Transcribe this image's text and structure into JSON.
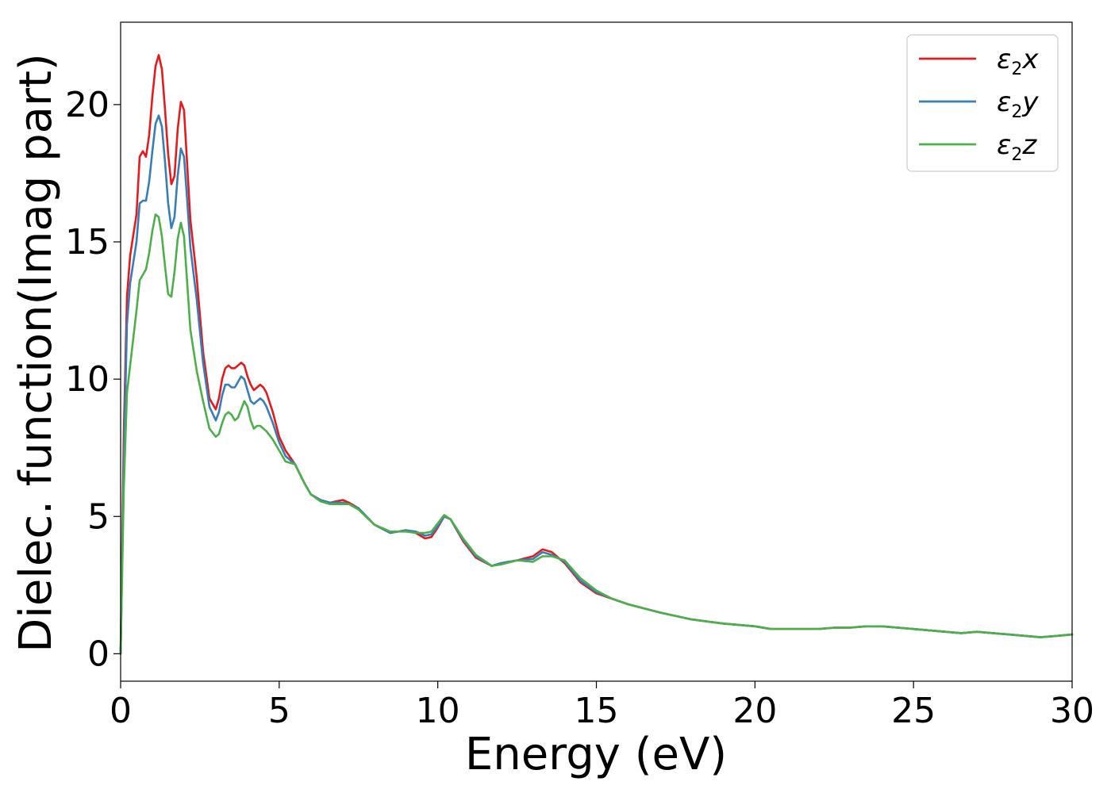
{
  "chart_data": {
    "type": "line",
    "xlabel": "Energy (eV)",
    "ylabel": "Dielec. function(Imag part)",
    "xlim": [
      0,
      30
    ],
    "ylim": [
      -1,
      23
    ],
    "xticks": [
      "0",
      "5",
      "10",
      "15",
      "20",
      "25",
      "30"
    ],
    "yticks": [
      "0",
      "5",
      "10",
      "15",
      "20"
    ],
    "grid": false,
    "legend_position": "top-right",
    "series": [
      {
        "name": "ε2x",
        "legend_base": "ε",
        "legend_sub": "2",
        "legend_suffix": "x",
        "color": "#e41a1c",
        "x": [
          0,
          0.1,
          0.2,
          0.3,
          0.5,
          0.6,
          0.7,
          0.8,
          0.9,
          1.0,
          1.1,
          1.2,
          1.3,
          1.4,
          1.5,
          1.6,
          1.7,
          1.8,
          1.9,
          2.0,
          2.1,
          2.2,
          2.4,
          2.6,
          2.8,
          3.0,
          3.1,
          3.2,
          3.3,
          3.4,
          3.5,
          3.6,
          3.7,
          3.8,
          3.9,
          4.0,
          4.1,
          4.2,
          4.3,
          4.4,
          4.5,
          4.6,
          4.8,
          5.0,
          5.2,
          5.5,
          5.8,
          6.0,
          6.3,
          6.6,
          7.0,
          7.2,
          7.5,
          8.0,
          8.5,
          9.0,
          9.3,
          9.6,
          9.8,
          10.0,
          10.2,
          10.4,
          10.8,
          11.2,
          11.7,
          12.0,
          12.5,
          13.0,
          13.3,
          13.6,
          14.0,
          14.5,
          15.0,
          15.5,
          16.0,
          17.0,
          18.0,
          19.0,
          20.0,
          20.5,
          21.0,
          22.0,
          22.5,
          23.0,
          23.5,
          24.0,
          25.0,
          26.0,
          26.5,
          27.0,
          27.5,
          28.0,
          29.0,
          29.5,
          30.0
        ],
        "y": [
          0,
          8,
          13,
          14.5,
          16,
          18.1,
          18.3,
          18.1,
          18.9,
          20.3,
          21.4,
          21.8,
          21.3,
          19.8,
          18.2,
          17.1,
          17.4,
          19.1,
          20.1,
          19.8,
          17.8,
          15.8,
          13.7,
          11.0,
          9.3,
          8.9,
          9.3,
          10.0,
          10.4,
          10.5,
          10.4,
          10.4,
          10.5,
          10.6,
          10.5,
          10.1,
          9.8,
          9.6,
          9.7,
          9.8,
          9.7,
          9.5,
          8.8,
          7.9,
          7.4,
          6.9,
          6.2,
          5.8,
          5.6,
          5.5,
          5.6,
          5.5,
          5.3,
          4.7,
          4.4,
          4.5,
          4.4,
          4.2,
          4.25,
          4.6,
          5.0,
          4.9,
          4.1,
          3.5,
          3.2,
          3.3,
          3.4,
          3.55,
          3.8,
          3.7,
          3.3,
          2.6,
          2.2,
          2.0,
          1.8,
          1.5,
          1.25,
          1.1,
          1.0,
          0.9,
          0.9,
          0.9,
          0.95,
          0.95,
          1.0,
          1.0,
          0.9,
          0.8,
          0.75,
          0.8,
          0.75,
          0.7,
          0.6,
          0.65,
          0.7
        ]
      },
      {
        "name": "ε2y",
        "legend_base": "ε",
        "legend_sub": "2",
        "legend_suffix": "y",
        "color": "#377eb8",
        "x": [
          0,
          0.1,
          0.2,
          0.3,
          0.5,
          0.6,
          0.7,
          0.8,
          0.9,
          1.0,
          1.1,
          1.2,
          1.3,
          1.4,
          1.5,
          1.6,
          1.7,
          1.8,
          1.9,
          2.0,
          2.1,
          2.2,
          2.4,
          2.6,
          2.8,
          3.0,
          3.1,
          3.2,
          3.3,
          3.4,
          3.5,
          3.6,
          3.7,
          3.8,
          3.9,
          4.0,
          4.1,
          4.2,
          4.3,
          4.4,
          4.5,
          4.6,
          4.8,
          5.0,
          5.2,
          5.5,
          5.8,
          6.0,
          6.3,
          6.6,
          7.0,
          7.2,
          7.5,
          8.0,
          8.5,
          9.0,
          9.3,
          9.6,
          9.8,
          10.0,
          10.2,
          10.4,
          10.8,
          11.2,
          11.7,
          12.0,
          12.5,
          13.0,
          13.3,
          13.6,
          14.0,
          14.5,
          15.0,
          15.5,
          16.0,
          17.0,
          18.0,
          19.0,
          20.0,
          20.5,
          21.0,
          22.0,
          22.5,
          23.0,
          23.5,
          24.0,
          25.0,
          26.0,
          26.5,
          27.0,
          27.5,
          28.0,
          29.0,
          29.5,
          30.0
        ],
        "y": [
          0,
          7,
          12,
          13.5,
          15,
          16.4,
          16.5,
          16.5,
          17.2,
          18.3,
          19.3,
          19.6,
          19.2,
          17.9,
          16.4,
          15.5,
          15.9,
          17.4,
          18.4,
          18.1,
          16.5,
          14.8,
          12.9,
          10.6,
          9.0,
          8.5,
          8.8,
          9.4,
          9.8,
          9.8,
          9.7,
          9.7,
          9.9,
          10.1,
          10.0,
          9.6,
          9.2,
          9.1,
          9.2,
          9.3,
          9.2,
          9.0,
          8.4,
          7.7,
          7.2,
          6.9,
          6.2,
          5.8,
          5.6,
          5.5,
          5.5,
          5.45,
          5.3,
          4.7,
          4.4,
          4.5,
          4.45,
          4.3,
          4.35,
          4.65,
          5.0,
          4.9,
          4.15,
          3.55,
          3.2,
          3.3,
          3.4,
          3.45,
          3.7,
          3.6,
          3.35,
          2.65,
          2.25,
          2.0,
          1.8,
          1.5,
          1.25,
          1.1,
          1.0,
          0.9,
          0.9,
          0.9,
          0.95,
          0.95,
          1.0,
          1.0,
          0.9,
          0.8,
          0.75,
          0.8,
          0.75,
          0.7,
          0.6,
          0.65,
          0.7
        ]
      },
      {
        "name": "ε2z",
        "legend_base": "ε",
        "legend_sub": "2",
        "legend_suffix": "z",
        "color": "#4daf4a",
        "x": [
          0,
          0.1,
          0.2,
          0.3,
          0.5,
          0.6,
          0.7,
          0.8,
          0.9,
          1.0,
          1.1,
          1.2,
          1.3,
          1.4,
          1.5,
          1.6,
          1.7,
          1.8,
          1.9,
          2.0,
          2.1,
          2.2,
          2.4,
          2.6,
          2.8,
          3.0,
          3.1,
          3.2,
          3.3,
          3.4,
          3.5,
          3.6,
          3.7,
          3.8,
          3.9,
          4.0,
          4.1,
          4.2,
          4.3,
          4.4,
          4.5,
          4.6,
          4.8,
          5.0,
          5.2,
          5.5,
          5.8,
          6.0,
          6.3,
          6.6,
          7.0,
          7.2,
          7.5,
          8.0,
          8.5,
          9.0,
          9.3,
          9.6,
          9.8,
          10.0,
          10.2,
          10.4,
          10.8,
          11.2,
          11.7,
          12.0,
          12.5,
          13.0,
          13.3,
          13.6,
          14.0,
          14.5,
          15.0,
          15.5,
          16.0,
          17.0,
          18.0,
          19.0,
          20.0,
          20.5,
          21.0,
          22.0,
          22.5,
          23.0,
          23.5,
          24.0,
          25.0,
          26.0,
          26.5,
          27.0,
          27.5,
          28.0,
          29.0,
          29.5,
          30.0
        ],
        "y": [
          0,
          6,
          9.5,
          10.5,
          12.5,
          13.6,
          13.8,
          14.0,
          14.6,
          15.4,
          16.0,
          15.9,
          15.2,
          14.1,
          13.1,
          13.0,
          13.9,
          15.1,
          15.7,
          15.2,
          13.5,
          11.8,
          10.3,
          9.2,
          8.2,
          7.9,
          8.0,
          8.4,
          8.7,
          8.8,
          8.7,
          8.5,
          8.6,
          8.9,
          9.2,
          9.0,
          8.5,
          8.2,
          8.3,
          8.3,
          8.2,
          8.1,
          7.8,
          7.4,
          7.0,
          6.9,
          6.2,
          5.8,
          5.55,
          5.45,
          5.45,
          5.45,
          5.25,
          4.7,
          4.45,
          4.45,
          4.4,
          4.4,
          4.45,
          4.75,
          5.05,
          4.9,
          4.2,
          3.6,
          3.2,
          3.25,
          3.4,
          3.35,
          3.55,
          3.55,
          3.4,
          2.75,
          2.3,
          2.0,
          1.8,
          1.5,
          1.25,
          1.1,
          1.0,
          0.9,
          0.9,
          0.9,
          0.95,
          0.95,
          1.0,
          1.0,
          0.9,
          0.8,
          0.75,
          0.8,
          0.75,
          0.7,
          0.6,
          0.65,
          0.7
        ]
      }
    ]
  }
}
